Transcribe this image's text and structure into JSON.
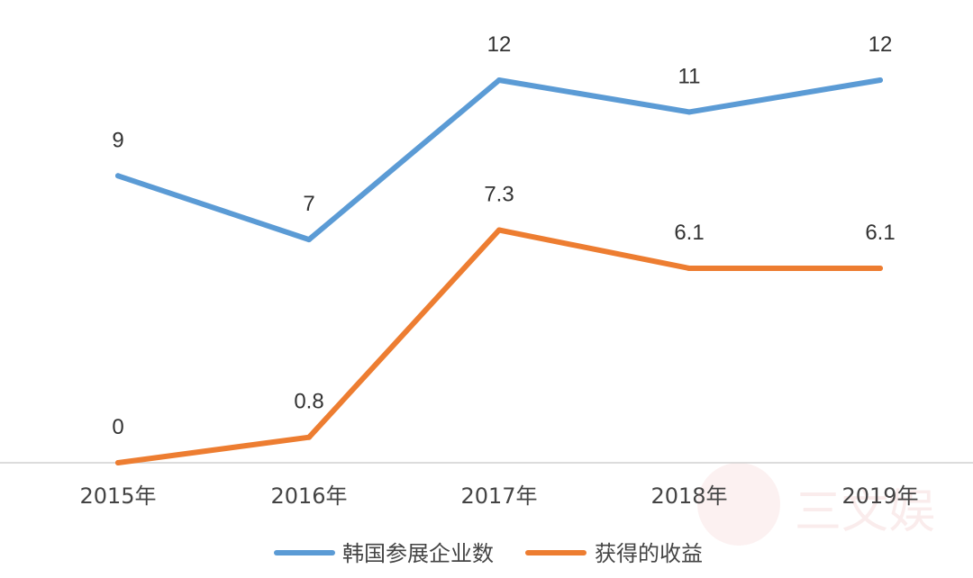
{
  "chart_data": {
    "type": "line",
    "title": "",
    "xlabel": "",
    "ylabel": "",
    "categories": [
      "2015年",
      "2016年",
      "2017年",
      "2018年",
      "2019年"
    ],
    "series": [
      {
        "name": "韩国参展企业数",
        "values": [
          9,
          7,
          12,
          11,
          12
        ],
        "labels": [
          "9",
          "7",
          "12",
          "11",
          "12"
        ],
        "color": "#5b9bd5"
      },
      {
        "name": "获得的收益",
        "values": [
          0,
          0.8,
          7.3,
          6.1,
          6.1
        ],
        "labels": [
          "0",
          "0.8",
          "7.3",
          "6.1",
          "6.1"
        ],
        "color": "#ed7d31"
      }
    ],
    "ylim": [
      0,
      12
    ],
    "grid": false,
    "legend": "bottom"
  },
  "watermark": {
    "text": "三文娱",
    "color": "#f6dede"
  }
}
